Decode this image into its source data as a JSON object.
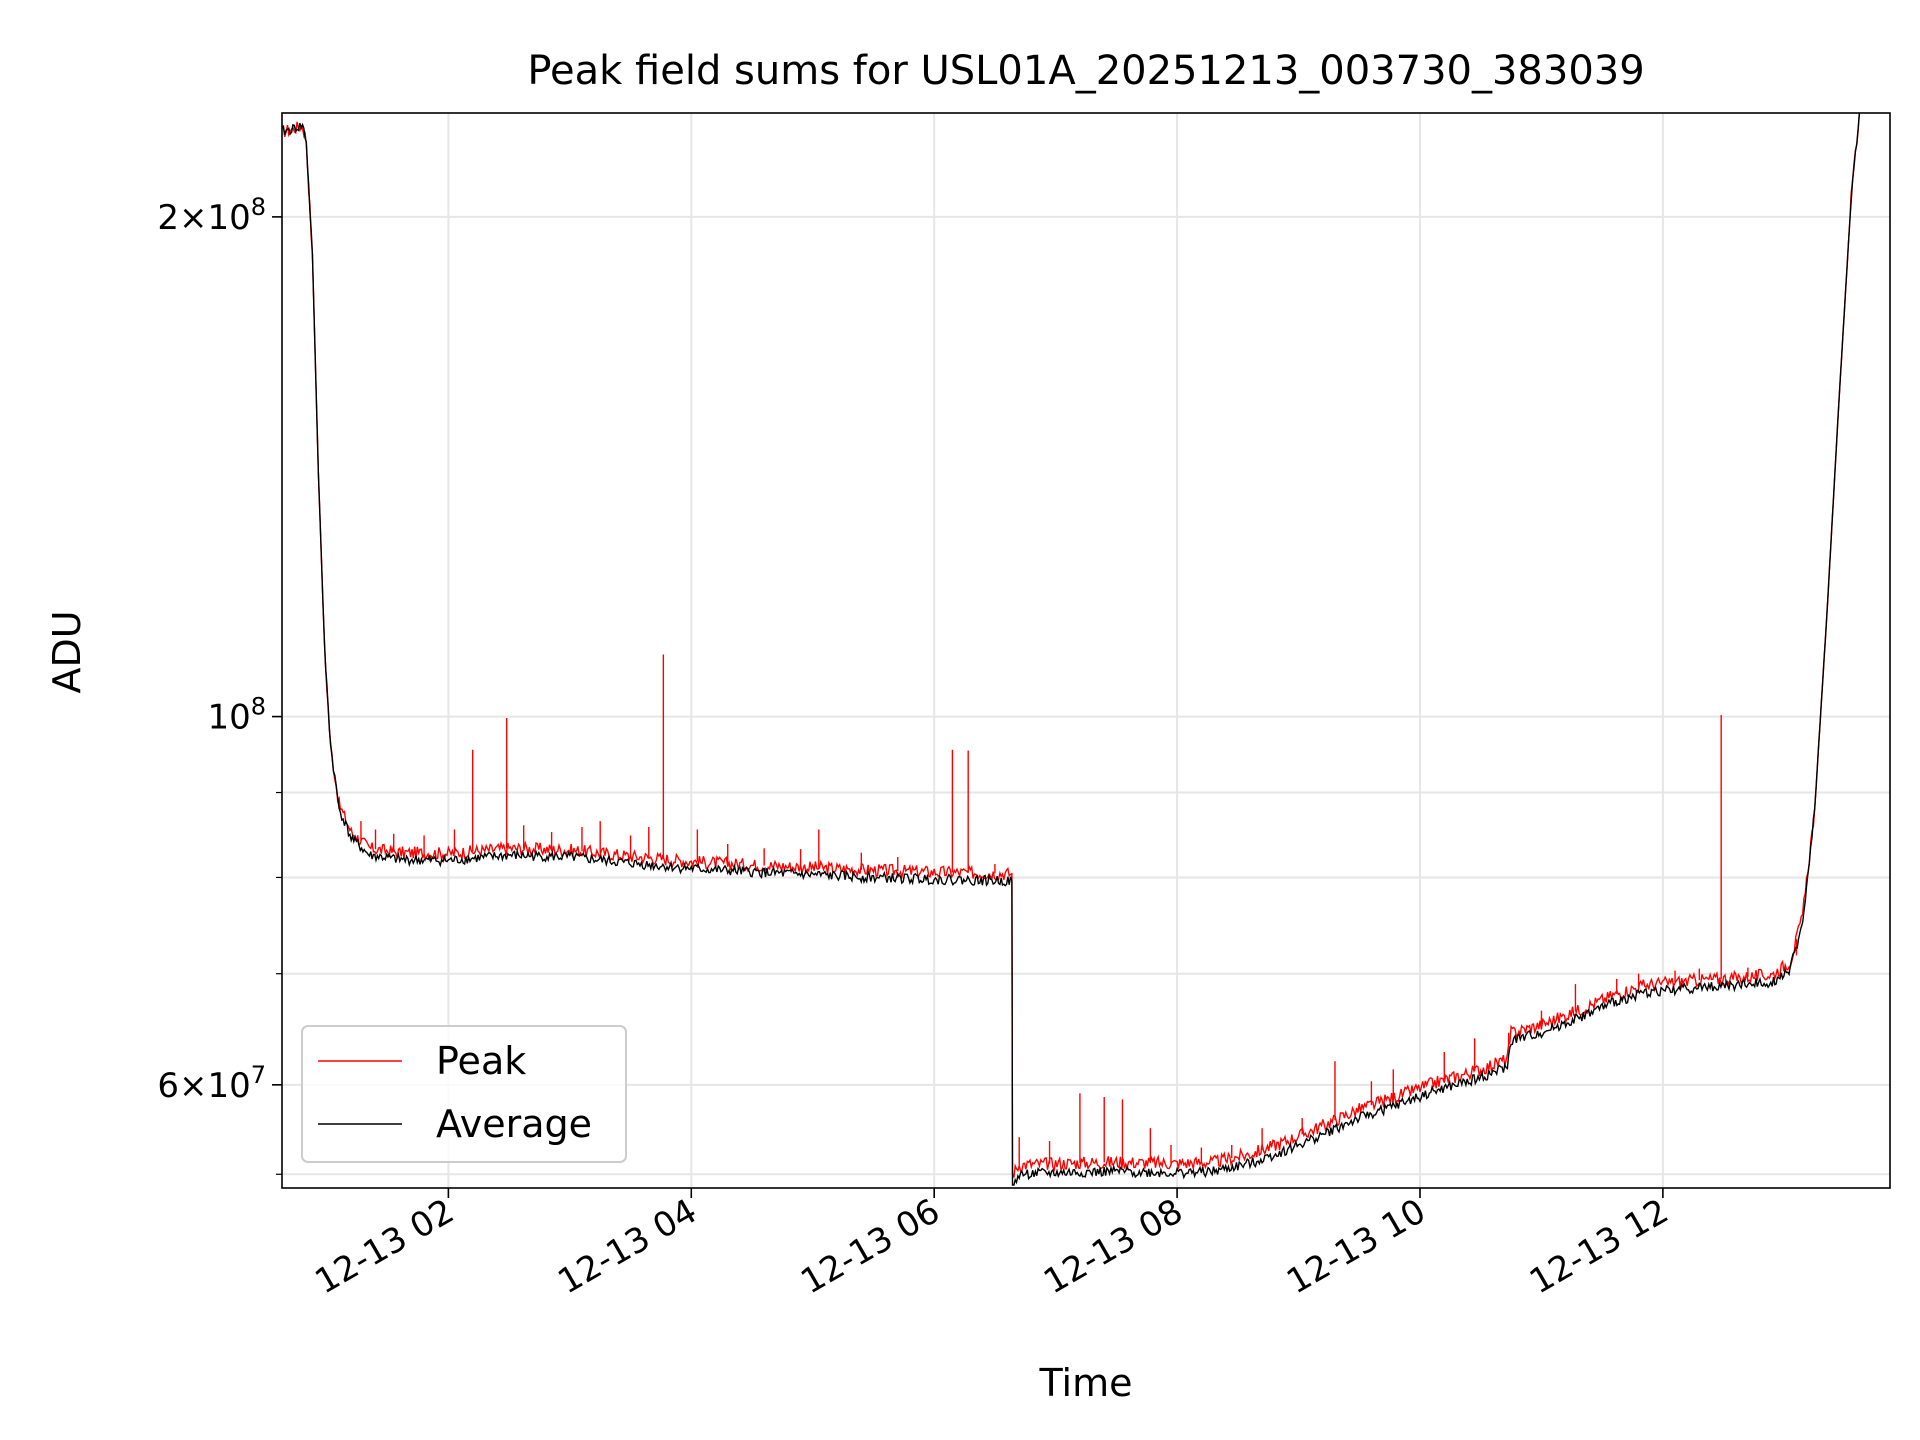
{
  "chart_data": {
    "type": "line",
    "title": "Peak field sums for USL01A_20251213_003730_383039",
    "xlabel": "Time",
    "ylabel": "ADU",
    "yscale": "log",
    "xlim_hours": [
      0.63,
      13.87
    ],
    "ylim": [
      52000000,
      231000000
    ],
    "grid": true,
    "x_ticks": [
      {
        "hour": 2,
        "label": "12-13 02"
      },
      {
        "hour": 4,
        "label": "12-13 04"
      },
      {
        "hour": 6,
        "label": "12-13 06"
      },
      {
        "hour": 8,
        "label": "12-13 08"
      },
      {
        "hour": 10,
        "label": "12-13 10"
      },
      {
        "hour": 12,
        "label": "12-13 12"
      }
    ],
    "y_major_ticks": [
      {
        "value": 200000000,
        "base": "2×10",
        "exp": "8"
      },
      {
        "value": 100000000,
        "base": "10",
        "exp": "8"
      },
      {
        "value": 60000000,
        "base": "6×10",
        "exp": "7"
      }
    ],
    "y_minor_ticks": [
      53000000,
      70000000,
      80000000,
      90000000
    ],
    "legend": {
      "position": "lower-left",
      "entries": [
        {
          "label": "Peak",
          "color": "#ff0000"
        },
        {
          "label": "Average",
          "color": "#000000"
        }
      ]
    },
    "series": [
      {
        "name": "Average",
        "color": "#000000",
        "points": [
          [
            0.63,
            225000000
          ],
          [
            0.72,
            226000000
          ],
          [
            0.8,
            227000000
          ],
          [
            0.83,
            222000000
          ],
          [
            0.88,
            190000000
          ],
          [
            0.93,
            140000000
          ],
          [
            0.98,
            110000000
          ],
          [
            1.03,
            96000000
          ],
          [
            1.1,
            88000000
          ],
          [
            1.2,
            84500000
          ],
          [
            1.35,
            82500000
          ],
          [
            1.6,
            82000000
          ],
          [
            2.0,
            81900000
          ],
          [
            2.5,
            82500000
          ],
          [
            3.0,
            82300000
          ],
          [
            3.5,
            81600000
          ],
          [
            4.0,
            81000000
          ],
          [
            4.5,
            80600000
          ],
          [
            5.0,
            80300000
          ],
          [
            5.5,
            80000000
          ],
          [
            6.0,
            79800000
          ],
          [
            6.64,
            79600000
          ],
          [
            6.645,
            52000000
          ],
          [
            6.7,
            53000000
          ],
          [
            7.0,
            53100000
          ],
          [
            7.5,
            53200000
          ],
          [
            8.0,
            53100000
          ],
          [
            8.3,
            53200000
          ],
          [
            8.6,
            53800000
          ],
          [
            8.9,
            54800000
          ],
          [
            9.2,
            56000000
          ],
          [
            9.5,
            57300000
          ],
          [
            9.8,
            58300000
          ],
          [
            10.1,
            59400000
          ],
          [
            10.5,
            60600000
          ],
          [
            10.72,
            61500000
          ],
          [
            10.75,
            63800000
          ],
          [
            11.0,
            64500000
          ],
          [
            11.3,
            65800000
          ],
          [
            11.6,
            67300000
          ],
          [
            11.85,
            68200000
          ],
          [
            12.2,
            68600000
          ],
          [
            12.6,
            68900000
          ],
          [
            12.9,
            69200000
          ],
          [
            13.05,
            70500000
          ],
          [
            13.15,
            75000000
          ],
          [
            13.25,
            88000000
          ],
          [
            13.35,
            115000000
          ],
          [
            13.45,
            155000000
          ],
          [
            13.55,
            205000000
          ],
          [
            13.62,
            232000000
          ]
        ]
      },
      {
        "name": "Peak",
        "color": "#ff0000",
        "points": [
          [
            0.63,
            225000000
          ],
          [
            0.72,
            226000000
          ],
          [
            0.8,
            227000000
          ],
          [
            0.83,
            222000000
          ],
          [
            0.88,
            190000000
          ],
          [
            0.93,
            140000000
          ],
          [
            0.98,
            110000000
          ],
          [
            1.03,
            96000000
          ],
          [
            1.1,
            88500000
          ],
          [
            1.2,
            85200000
          ],
          [
            1.35,
            83300000
          ],
          [
            1.6,
            82800000
          ],
          [
            2.0,
            82700000
          ],
          [
            2.5,
            83300000
          ],
          [
            3.0,
            83100000
          ],
          [
            3.5,
            82400000
          ],
          [
            4.0,
            81800000
          ],
          [
            4.5,
            81400000
          ],
          [
            5.0,
            81100000
          ],
          [
            5.5,
            80800000
          ],
          [
            6.0,
            80600000
          ],
          [
            6.64,
            80400000
          ],
          [
            6.645,
            53000000
          ],
          [
            6.7,
            53700000
          ],
          [
            7.0,
            53800000
          ],
          [
            7.5,
            53900000
          ],
          [
            8.0,
            53800000
          ],
          [
            8.3,
            53900000
          ],
          [
            8.6,
            54500000
          ],
          [
            8.9,
            55500000
          ],
          [
            9.2,
            56700000
          ],
          [
            9.5,
            58000000
          ],
          [
            9.8,
            59000000
          ],
          [
            10.1,
            60100000
          ],
          [
            10.5,
            61300000
          ],
          [
            10.72,
            62200000
          ],
          [
            10.75,
            64500000
          ],
          [
            11.0,
            65200000
          ],
          [
            11.3,
            66500000
          ],
          [
            11.6,
            68000000
          ],
          [
            11.85,
            68900000
          ],
          [
            12.2,
            69300000
          ],
          [
            12.6,
            69600000
          ],
          [
            12.9,
            69900000
          ],
          [
            13.05,
            71200000
          ],
          [
            13.15,
            75800000
          ],
          [
            13.25,
            88000000
          ],
          [
            13.35,
            115000000
          ],
          [
            13.45,
            155000000
          ],
          [
            13.55,
            205000000
          ],
          [
            13.62,
            232000000
          ]
        ],
        "spikes": [
          [
            1.28,
            86500000
          ],
          [
            1.4,
            85500000
          ],
          [
            1.55,
            85000000
          ],
          [
            1.8,
            84800000
          ],
          [
            2.05,
            85500000
          ],
          [
            2.2,
            95500000
          ],
          [
            2.48,
            99800000
          ],
          [
            2.62,
            86000000
          ],
          [
            2.85,
            85200000
          ],
          [
            3.1,
            85800000
          ],
          [
            3.25,
            86500000
          ],
          [
            3.5,
            84800000
          ],
          [
            3.65,
            85800000
          ],
          [
            3.77,
            109000000
          ],
          [
            4.05,
            85500000
          ],
          [
            4.3,
            83800000
          ],
          [
            4.6,
            83300000
          ],
          [
            4.9,
            83200000
          ],
          [
            5.05,
            85500000
          ],
          [
            5.4,
            82800000
          ],
          [
            5.7,
            82300000
          ],
          [
            6.15,
            95500000
          ],
          [
            6.28,
            95400000
          ],
          [
            6.5,
            81500000
          ],
          [
            6.7,
            55800000
          ],
          [
            6.95,
            55500000
          ],
          [
            7.2,
            59300000
          ],
          [
            7.4,
            59000000
          ],
          [
            7.55,
            58800000
          ],
          [
            7.78,
            56500000
          ],
          [
            7.95,
            55200000
          ],
          [
            8.2,
            55000000
          ],
          [
            8.45,
            55200000
          ],
          [
            8.7,
            56500000
          ],
          [
            9.03,
            57300000
          ],
          [
            9.3,
            62000000
          ],
          [
            9.6,
            60300000
          ],
          [
            9.78,
            61300000
          ],
          [
            10.2,
            62800000
          ],
          [
            10.45,
            64000000
          ],
          [
            10.73,
            64500000
          ],
          [
            11.0,
            66500000
          ],
          [
            11.28,
            69000000
          ],
          [
            11.62,
            69500000
          ],
          [
            11.8,
            70000000
          ],
          [
            12.1,
            70300000
          ],
          [
            12.3,
            70500000
          ],
          [
            12.48,
            100200000
          ],
          [
            12.7,
            70600000
          ],
          [
            13.1,
            71800000
          ]
        ]
      }
    ]
  }
}
